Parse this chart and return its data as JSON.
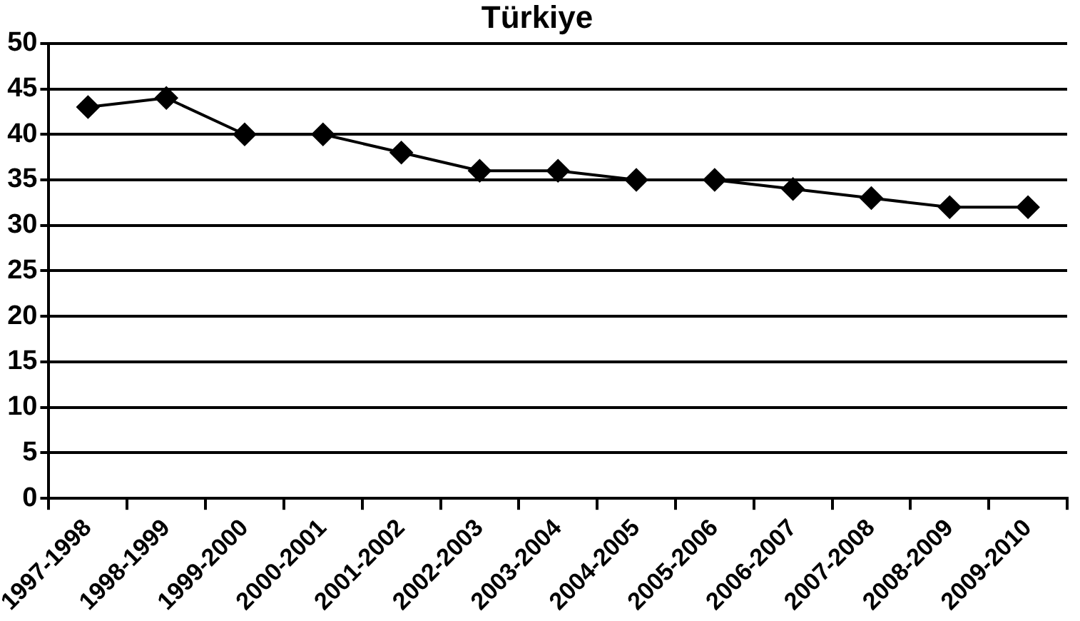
{
  "chart_data": {
    "type": "line",
    "title": "Türkiye",
    "categories": [
      "1997-1998",
      "1998-1999",
      "1999-2000",
      "2000-2001",
      "2001-2002",
      "2002-2003",
      "2003-2004",
      "2004-2005",
      "2005-2006",
      "2006-2007",
      "2007-2008",
      "2008-2009",
      "2009-2010"
    ],
    "series": [
      {
        "color": "#000000",
        "values": [
          43,
          44,
          40,
          40,
          38,
          36,
          36,
          35,
          35,
          34,
          33,
          32,
          32
        ]
      }
    ],
    "ylim": [
      0,
      50
    ],
    "yticks": [
      0,
      5,
      10,
      15,
      20,
      25,
      30,
      35,
      40,
      45,
      50
    ],
    "grid": "y",
    "legend": false,
    "marker": "diamond",
    "line_style": "solid"
  }
}
